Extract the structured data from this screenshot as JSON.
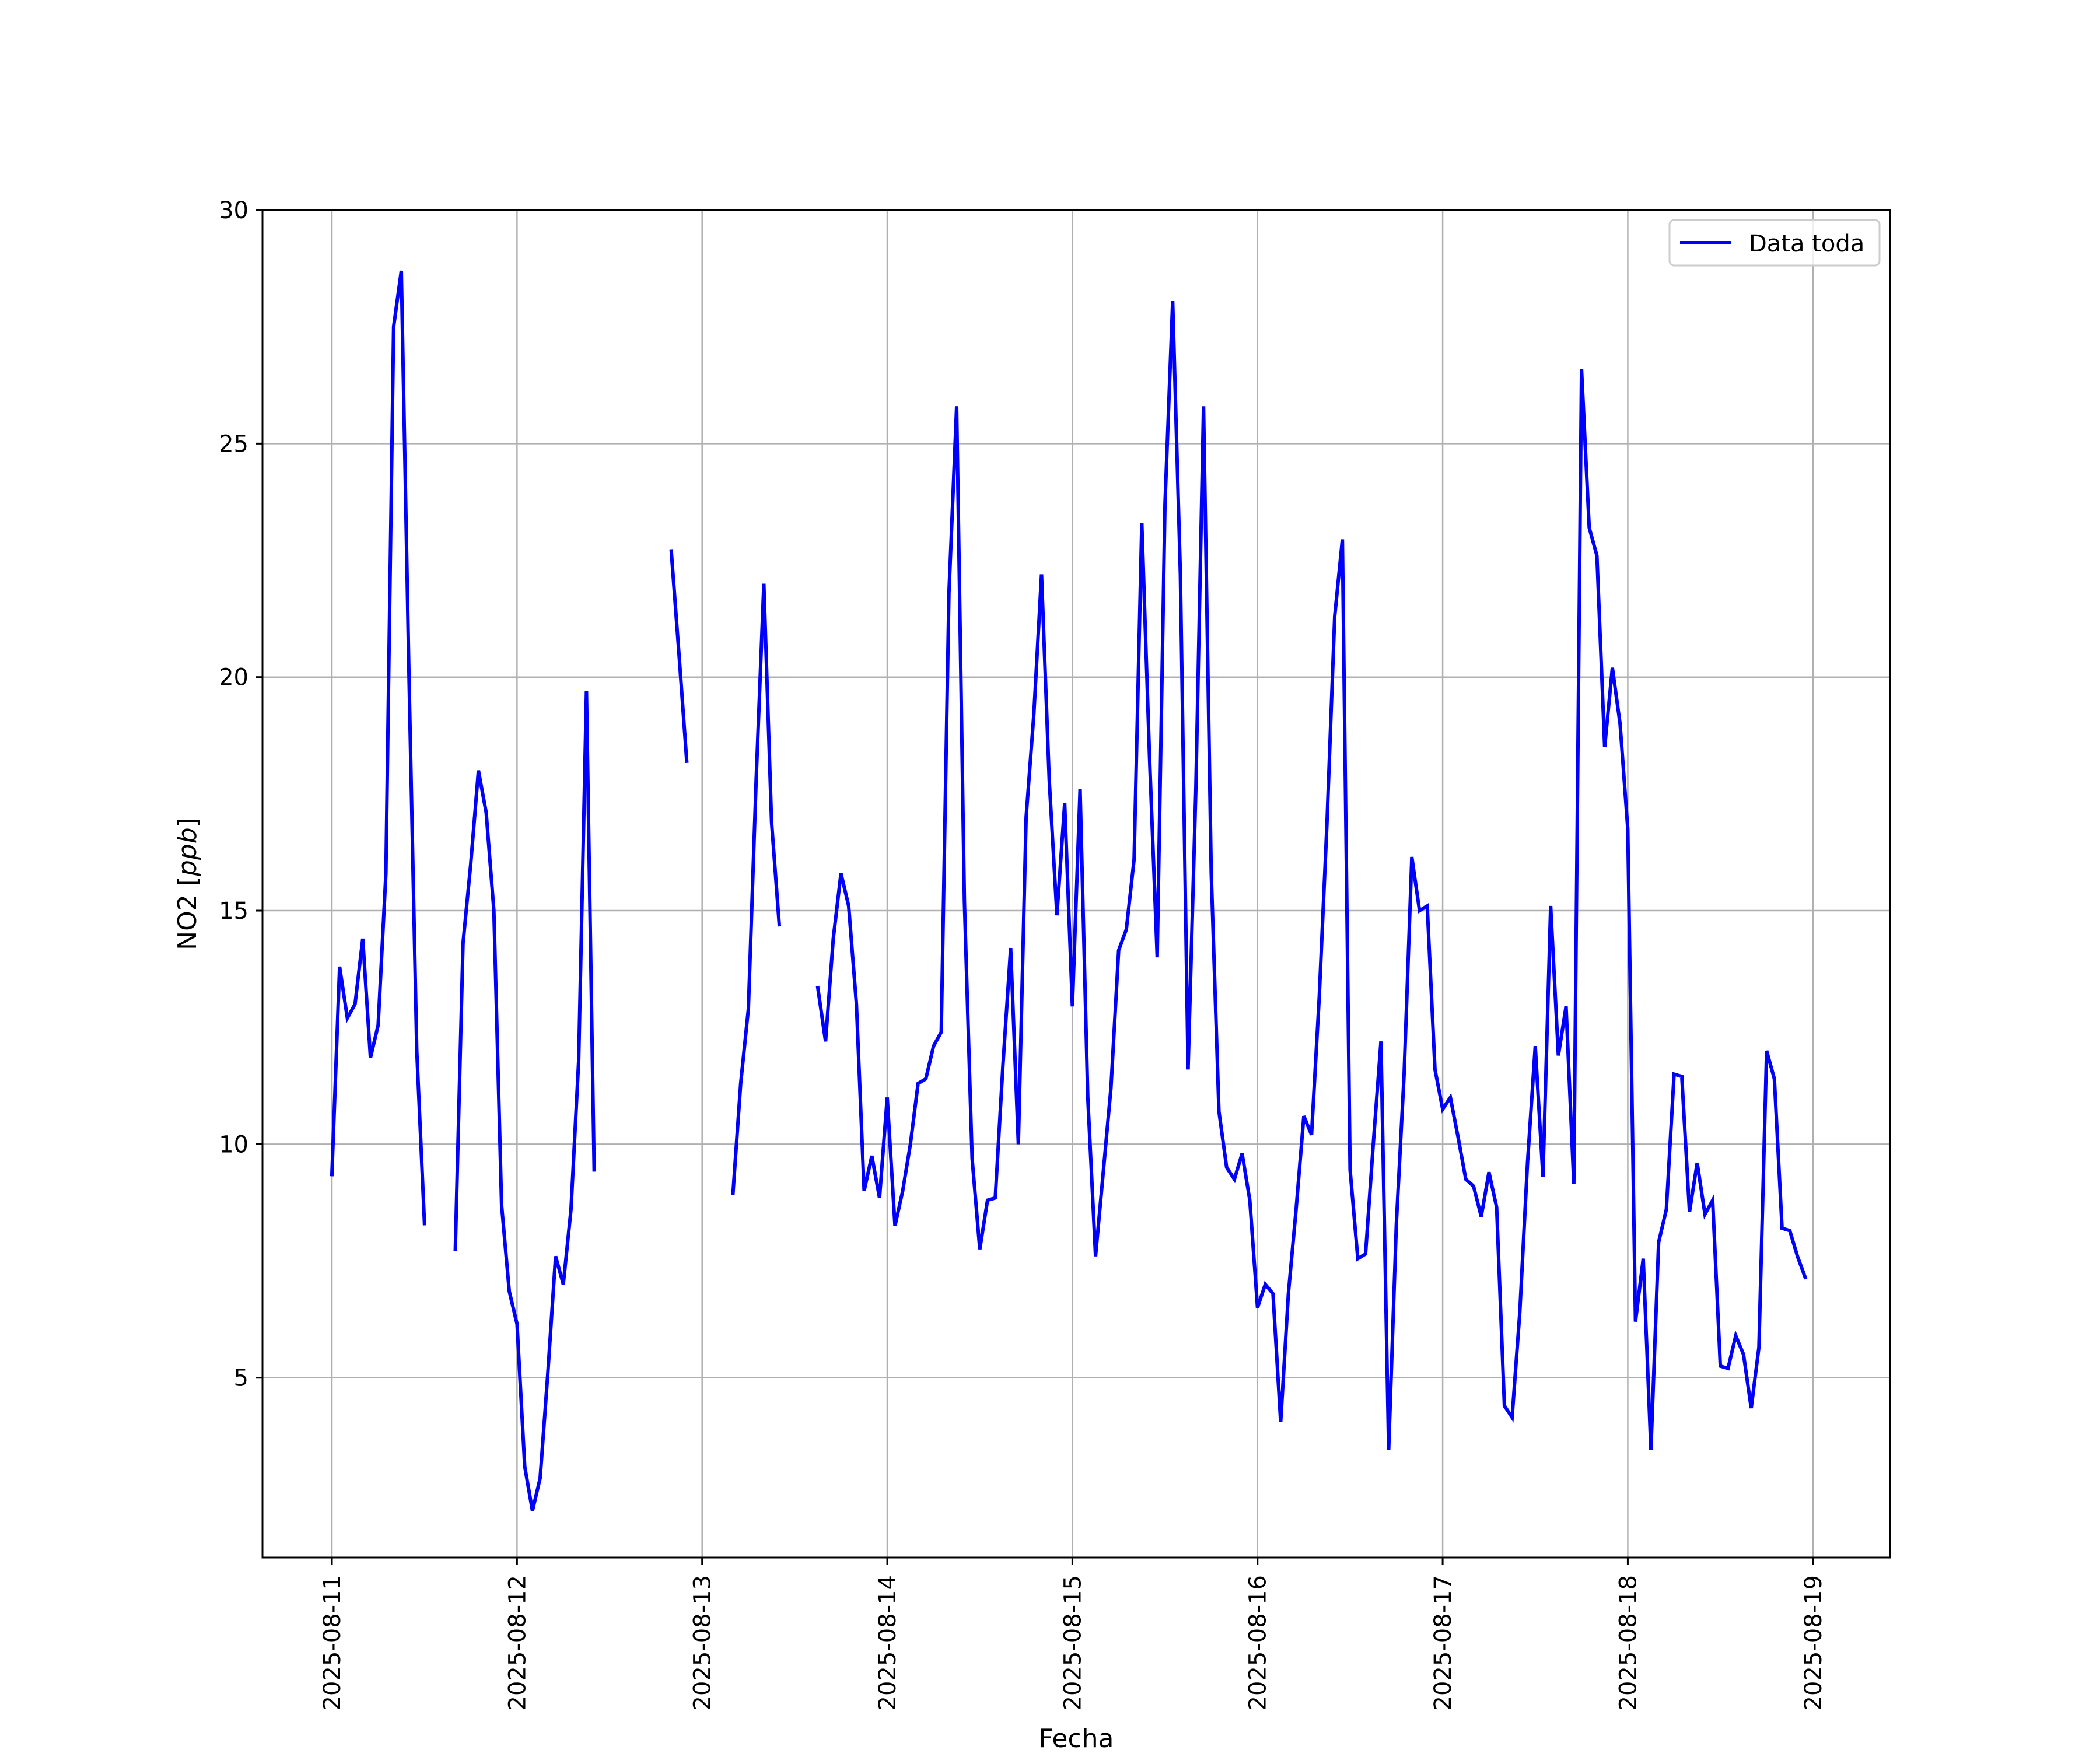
{
  "chart_data": {
    "type": "line",
    "title": "",
    "xlabel": "Fecha",
    "ylabel_prefix": "NO2 [",
    "ylabel_italic": "ppb",
    "ylabel_suffix": "]",
    "grid": true,
    "legend_position": "top-right",
    "xlim": [
      "2025-08-10 15:00",
      "2025-08-19 10:00"
    ],
    "ylim": [
      1.15,
      30
    ],
    "x_ticks": [
      "2025-08-11",
      "2025-08-12",
      "2025-08-13",
      "2025-08-14",
      "2025-08-15",
      "2025-08-16",
      "2025-08-17",
      "2025-08-18",
      "2025-08-19"
    ],
    "y_ticks": [
      5,
      10,
      15,
      20,
      25,
      30
    ],
    "series": [
      {
        "name": "Data toda",
        "color": "#0000ff",
        "x": [
          "2025-08-11 00:00",
          "2025-08-11 01:00",
          "2025-08-11 02:00",
          "2025-08-11 03:00",
          "2025-08-11 04:00",
          "2025-08-11 05:00",
          "2025-08-11 06:00",
          "2025-08-11 07:00",
          "2025-08-11 08:00",
          "2025-08-11 09:00",
          "2025-08-11 10:00",
          "2025-08-11 11:00",
          "2025-08-11 12:00",
          "2025-08-11 13:00",
          "2025-08-11 14:00",
          "2025-08-11 15:00",
          "2025-08-11 16:00",
          "2025-08-11 17:00",
          "2025-08-11 18:00",
          "2025-08-11 19:00",
          "2025-08-11 20:00",
          "2025-08-11 21:00",
          "2025-08-11 22:00",
          "2025-08-11 23:00",
          "2025-08-12 00:00",
          "2025-08-12 01:00",
          "2025-08-12 02:00",
          "2025-08-12 03:00",
          "2025-08-12 04:00",
          "2025-08-12 05:00",
          "2025-08-12 06:00",
          "2025-08-12 07:00",
          "2025-08-12 08:00",
          "2025-08-12 09:00",
          "2025-08-12 10:00",
          "2025-08-12 11:00",
          "2025-08-12 12:00",
          "2025-08-12 13:00",
          "2025-08-12 14:00",
          "2025-08-12 15:00",
          "2025-08-12 16:00",
          "2025-08-12 17:00",
          "2025-08-12 18:00",
          "2025-08-12 19:00",
          "2025-08-12 20:00",
          "2025-08-12 21:00",
          "2025-08-12 22:00",
          "2025-08-12 23:00",
          "2025-08-13 00:00",
          "2025-08-13 01:00",
          "2025-08-13 02:00",
          "2025-08-13 03:00",
          "2025-08-13 04:00",
          "2025-08-13 05:00",
          "2025-08-13 06:00",
          "2025-08-13 07:00",
          "2025-08-13 08:00",
          "2025-08-13 09:00",
          "2025-08-13 10:00",
          "2025-08-13 11:00",
          "2025-08-13 12:00",
          "2025-08-13 13:00",
          "2025-08-13 14:00",
          "2025-08-13 15:00",
          "2025-08-13 16:00",
          "2025-08-13 17:00",
          "2025-08-13 18:00",
          "2025-08-13 19:00",
          "2025-08-13 20:00",
          "2025-08-13 21:00",
          "2025-08-13 22:00",
          "2025-08-13 23:00",
          "2025-08-14 00:00",
          "2025-08-14 01:00",
          "2025-08-14 02:00",
          "2025-08-14 03:00",
          "2025-08-14 04:00",
          "2025-08-14 05:00",
          "2025-08-14 06:00",
          "2025-08-14 07:00",
          "2025-08-14 08:00",
          "2025-08-14 09:00",
          "2025-08-14 10:00",
          "2025-08-14 11:00",
          "2025-08-14 12:00",
          "2025-08-14 13:00",
          "2025-08-14 14:00",
          "2025-08-14 15:00",
          "2025-08-14 16:00",
          "2025-08-14 17:00",
          "2025-08-14 18:00",
          "2025-08-14 19:00",
          "2025-08-14 20:00",
          "2025-08-14 21:00",
          "2025-08-14 22:00",
          "2025-08-14 23:00",
          "2025-08-15 00:00",
          "2025-08-15 01:00",
          "2025-08-15 02:00",
          "2025-08-15 03:00",
          "2025-08-15 04:00",
          "2025-08-15 05:00",
          "2025-08-15 06:00",
          "2025-08-15 07:00",
          "2025-08-15 08:00",
          "2025-08-15 09:00",
          "2025-08-15 10:00",
          "2025-08-15 11:00",
          "2025-08-15 12:00",
          "2025-08-15 13:00",
          "2025-08-15 14:00",
          "2025-08-15 15:00",
          "2025-08-15 16:00",
          "2025-08-15 17:00",
          "2025-08-15 18:00",
          "2025-08-15 19:00",
          "2025-08-15 20:00",
          "2025-08-15 21:00",
          "2025-08-15 22:00",
          "2025-08-15 23:00",
          "2025-08-16 00:00",
          "2025-08-16 01:00",
          "2025-08-16 02:00",
          "2025-08-16 03:00",
          "2025-08-16 04:00",
          "2025-08-16 05:00",
          "2025-08-16 06:00",
          "2025-08-16 07:00",
          "2025-08-16 08:00",
          "2025-08-16 09:00",
          "2025-08-16 10:00",
          "2025-08-16 11:00",
          "2025-08-16 12:00",
          "2025-08-16 13:00",
          "2025-08-16 14:00",
          "2025-08-16 15:00",
          "2025-08-16 16:00",
          "2025-08-16 17:00",
          "2025-08-16 18:00",
          "2025-08-16 19:00",
          "2025-08-16 20:00",
          "2025-08-16 21:00",
          "2025-08-16 22:00",
          "2025-08-16 23:00",
          "2025-08-17 00:00",
          "2025-08-17 01:00",
          "2025-08-17 02:00",
          "2025-08-17 03:00",
          "2025-08-17 04:00",
          "2025-08-17 05:00",
          "2025-08-17 06:00",
          "2025-08-17 07:00",
          "2025-08-17 08:00",
          "2025-08-17 09:00",
          "2025-08-17 10:00",
          "2025-08-17 11:00",
          "2025-08-17 12:00",
          "2025-08-17 13:00",
          "2025-08-17 14:00",
          "2025-08-17 15:00",
          "2025-08-17 16:00",
          "2025-08-17 17:00",
          "2025-08-17 18:00",
          "2025-08-17 19:00",
          "2025-08-17 20:00",
          "2025-08-17 21:00",
          "2025-08-17 22:00",
          "2025-08-17 23:00",
          "2025-08-18 00:00",
          "2025-08-18 01:00",
          "2025-08-18 02:00",
          "2025-08-18 03:00",
          "2025-08-18 04:00",
          "2025-08-18 05:00",
          "2025-08-18 06:00",
          "2025-08-18 07:00",
          "2025-08-18 08:00",
          "2025-08-18 09:00",
          "2025-08-18 10:00",
          "2025-08-18 11:00",
          "2025-08-18 12:00",
          "2025-08-18 13:00",
          "2025-08-18 14:00",
          "2025-08-18 15:00",
          "2025-08-18 16:00",
          "2025-08-18 17:00",
          "2025-08-18 18:00",
          "2025-08-18 19:00",
          "2025-08-18 20:00",
          "2025-08-18 21:00",
          "2025-08-18 22:00",
          "2025-08-18 23:00",
          "2025-08-19 00:00"
        ],
        "y": [
          9.35,
          13.8,
          12.7,
          13.0,
          14.4,
          11.85,
          12.55,
          15.8,
          27.5,
          28.7,
          20.0,
          12.0,
          8.3,
          null,
          null,
          null,
          7.75,
          14.3,
          16.0,
          18.0,
          17.1,
          15.0,
          8.7,
          6.85,
          6.15,
          3.1,
          2.15,
          2.85,
          5.1,
          7.6,
          7.0,
          8.6,
          11.8,
          19.7,
          9.45,
          null,
          null,
          null,
          null,
          null,
          null,
          null,
          null,
          null,
          22.7,
          20.5,
          18.2,
          null,
          null,
          null,
          null,
          null,
          8.95,
          11.3,
          12.9,
          17.8,
          22.0,
          16.9,
          14.7,
          null,
          null,
          null,
          null,
          13.35,
          12.2,
          14.4,
          15.8,
          15.1,
          13.0,
          9.0,
          9.75,
          8.85,
          11.0,
          8.25,
          9.0,
          10.0,
          11.3,
          11.4,
          12.1,
          12.4,
          21.8,
          25.8,
          15.2,
          9.7,
          7.75,
          8.8,
          8.85,
          11.7,
          14.2,
          10.0,
          17.0,
          19.2,
          22.2,
          17.8,
          14.9,
          17.3,
          12.95,
          17.6,
          11.0,
          7.6,
          9.4,
          11.2,
          14.15,
          14.6,
          16.1,
          23.3,
          18.3,
          14.0,
          23.7,
          28.05,
          22.2,
          11.6,
          17.6,
          25.8,
          15.8,
          10.7,
          9.5,
          9.25,
          9.8,
          8.8,
          6.5,
          7.0,
          6.8,
          4.05,
          6.8,
          8.6,
          10.6,
          10.2,
          13.15,
          16.85,
          21.3,
          22.95,
          9.45,
          7.55,
          7.65,
          10.0,
          12.2,
          3.45,
          8.3,
          11.5,
          16.15,
          15.0,
          15.1,
          11.6,
          10.75,
          11.0,
          10.15,
          9.25,
          9.1,
          8.45,
          9.4,
          8.65,
          4.4,
          4.15,
          6.4,
          9.6,
          12.1,
          9.3,
          15.1,
          11.9,
          12.95,
          9.15,
          26.6,
          23.2,
          22.6,
          18.5,
          20.2,
          19.0,
          16.75,
          6.2,
          7.55,
          3.45,
          7.9,
          8.6,
          11.5,
          11.45,
          8.55,
          9.6,
          8.5,
          8.8,
          5.25,
          5.2,
          5.9,
          5.5,
          4.35,
          5.65,
          12.0,
          11.4,
          8.2,
          8.15,
          7.6,
          7.15,
          null
        ]
      }
    ]
  }
}
